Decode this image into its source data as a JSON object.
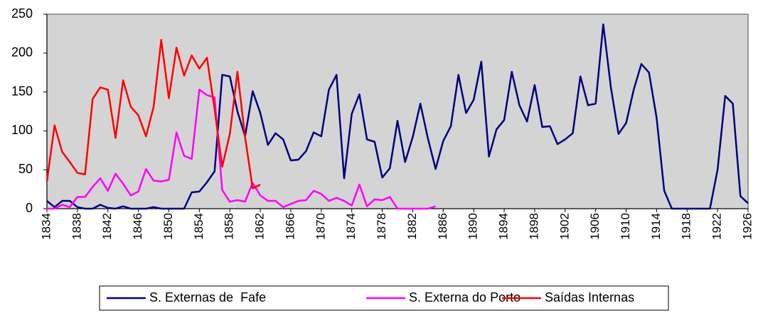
{
  "chart_data": {
    "type": "line",
    "x": [
      1834,
      1835,
      1836,
      1837,
      1838,
      1839,
      1840,
      1841,
      1842,
      1843,
      1844,
      1845,
      1846,
      1847,
      1848,
      1849,
      1850,
      1851,
      1852,
      1853,
      1854,
      1855,
      1856,
      1857,
      1858,
      1859,
      1860,
      1861,
      1862,
      1863,
      1864,
      1865,
      1866,
      1867,
      1868,
      1869,
      1870,
      1871,
      1872,
      1873,
      1874,
      1875,
      1876,
      1877,
      1878,
      1879,
      1880,
      1881,
      1882,
      1883,
      1884,
      1885,
      1886,
      1887,
      1888,
      1889,
      1890,
      1891,
      1892,
      1893,
      1894,
      1895,
      1896,
      1897,
      1898,
      1899,
      1900,
      1901,
      1902,
      1903,
      1904,
      1905,
      1906,
      1907,
      1908,
      1909,
      1910,
      1911,
      1912,
      1913,
      1914,
      1915,
      1916,
      1917,
      1918,
      1919,
      1920,
      1921,
      1922,
      1923,
      1924,
      1925,
      1926
    ],
    "series": [
      {
        "name": "S. Externas de  Fafe",
        "color": "#000080",
        "values": [
          10,
          2,
          10,
          10,
          2,
          0,
          0,
          5,
          1,
          0,
          3,
          0,
          0,
          0,
          2,
          0,
          0,
          0,
          0,
          21,
          22,
          34,
          48,
          172,
          170,
          125,
          93,
          151,
          123,
          82,
          97,
          89,
          62,
          63,
          74,
          98,
          93,
          153,
          172,
          39,
          122,
          147,
          89,
          86,
          40,
          52,
          113,
          60,
          92,
          135,
          90,
          51,
          87,
          106,
          172,
          123,
          140,
          189,
          67,
          102,
          114,
          176,
          133,
          112,
          159,
          105,
          106,
          83,
          89,
          97,
          170,
          133,
          135,
          237,
          156,
          96,
          110,
          153,
          186,
          175,
          117,
          23,
          0,
          0,
          0,
          0,
          0,
          0,
          50,
          145,
          135,
          16,
          7
        ]
      },
      {
        "name": "S. Externa do Porto",
        "color": "#ff00ff",
        "values": [
          0,
          0,
          5,
          2,
          15,
          15,
          28,
          39,
          23,
          45,
          32,
          17,
          22,
          51,
          36,
          35,
          37,
          98,
          68,
          64,
          153,
          146,
          143,
          24,
          9,
          11,
          9,
          33,
          17,
          10,
          10,
          2,
          6,
          10,
          11,
          23,
          19,
          10,
          14,
          10,
          4,
          31,
          3,
          12,
          11,
          15,
          0,
          0,
          0,
          0,
          0,
          3,
          null,
          null,
          null,
          null,
          null,
          null,
          null,
          null,
          null,
          null,
          null,
          null,
          null,
          null,
          null,
          null,
          null,
          null,
          null,
          null,
          null,
          null,
          null,
          null,
          null,
          null,
          null,
          null,
          null,
          null,
          null,
          null,
          null,
          null,
          null,
          null,
          null,
          null,
          null,
          null,
          null
        ]
      },
      {
        "name": "Saídas Internas",
        "color": "#ff0000",
        "values": [
          35,
          107,
          73,
          60,
          46,
          44,
          141,
          156,
          153,
          91,
          165,
          131,
          120,
          93,
          131,
          217,
          142,
          207,
          171,
          197,
          180,
          194,
          128,
          54,
          96,
          176,
          92,
          26,
          31,
          null,
          null,
          null,
          null,
          null,
          null,
          null,
          null,
          null,
          null,
          null,
          null,
          null,
          null,
          null,
          null,
          null,
          null,
          null,
          null,
          null,
          null,
          null,
          null,
          null,
          null,
          null,
          null,
          null,
          null,
          null,
          null,
          null,
          null,
          null,
          null,
          null,
          null,
          null,
          null,
          null,
          null,
          null,
          null,
          null,
          null,
          null,
          null,
          null,
          null,
          null,
          null,
          null,
          null,
          null,
          null,
          null,
          null,
          null,
          null,
          null,
          null,
          null,
          null
        ]
      }
    ],
    "xlim": [
      1834,
      1926
    ],
    "xticks": [
      1834,
      1838,
      1842,
      1846,
      1850,
      1854,
      1858,
      1862,
      1866,
      1870,
      1874,
      1878,
      1882,
      1886,
      1890,
      1894,
      1898,
      1902,
      1906,
      1910,
      1914,
      1918,
      1922,
      1926
    ],
    "ylim": [
      0,
      250
    ],
    "yticks": [
      0,
      50,
      100,
      150,
      200,
      250
    ],
    "plot_background": "#d4d4d4"
  }
}
